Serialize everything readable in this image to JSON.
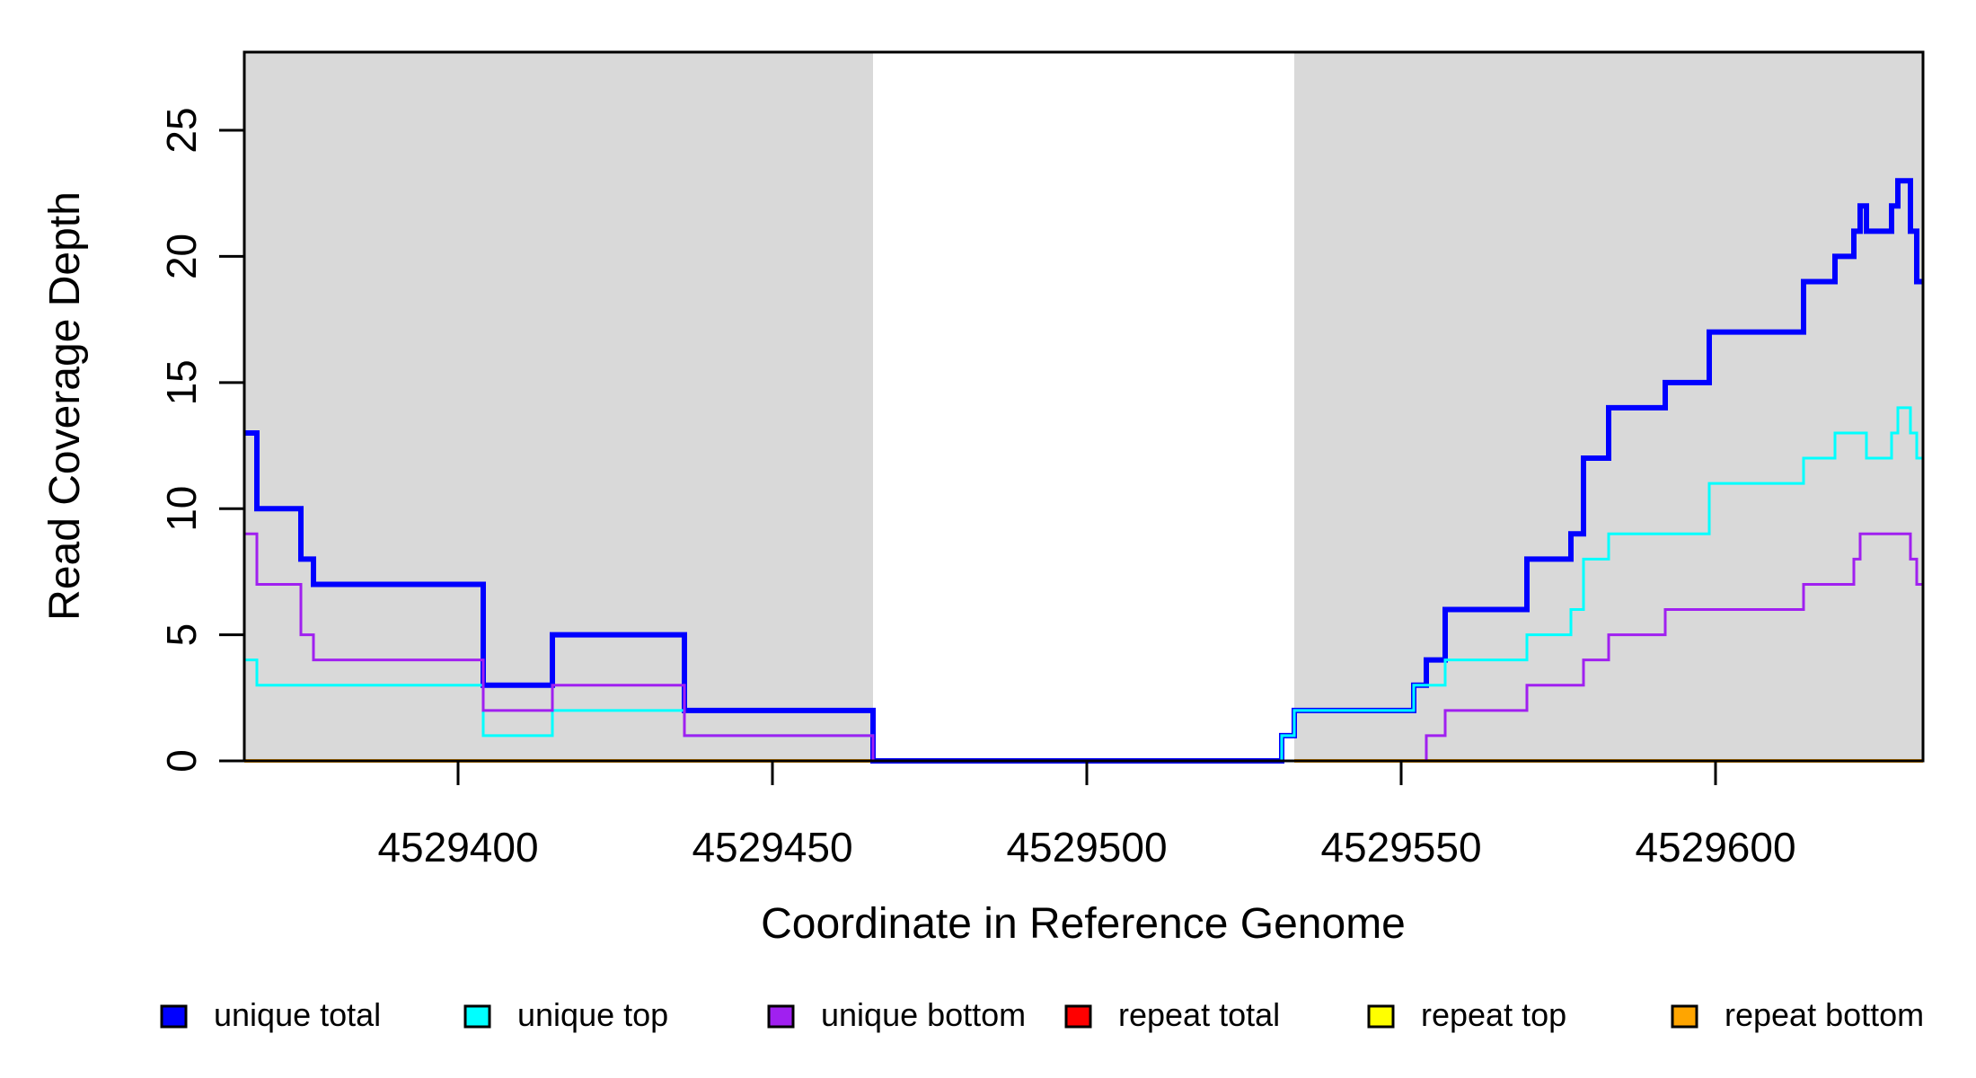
{
  "chart_data": {
    "type": "line",
    "subtype": "step-coverage-plot",
    "title": "",
    "xlabel": "Coordinate in Reference Genome",
    "ylabel": "Read Coverage Depth",
    "xlim": [
      4529366,
      4529633
    ],
    "ylim": [
      0,
      28.1
    ],
    "grid": false,
    "legend_position": "bottom",
    "xticks": [
      {
        "v": 4529400,
        "label": "4529400"
      },
      {
        "v": 4529450,
        "label": "4529450"
      },
      {
        "v": 4529500,
        "label": "4529500"
      },
      {
        "v": 4529550,
        "label": "4529550"
      },
      {
        "v": 4529600,
        "label": "4529600"
      }
    ],
    "yticks": [
      {
        "v": 0,
        "label": "0"
      },
      {
        "v": 5,
        "label": "5"
      },
      {
        "v": 10,
        "label": "10"
      },
      {
        "v": 15,
        "label": "15"
      },
      {
        "v": 20,
        "label": "20"
      },
      {
        "v": 25,
        "label": "25"
      }
    ],
    "shaded_regions": {
      "color": "#D9D9D9",
      "meaning": "repeat regions",
      "ranges": [
        [
          4529366,
          4529466
        ],
        [
          4529533,
          4529633
        ]
      ]
    },
    "draw_order": [
      3,
      4,
      5,
      0,
      1,
      2
    ],
    "series": [
      {
        "name": "unique total",
        "color": "#0000FF",
        "line_width": 6,
        "segments": [
          {
            "xend": 4529633,
            "points": [
              [
                4529366,
                13
              ],
              [
                4529368,
                10
              ],
              [
                4529375,
                8
              ],
              [
                4529377,
                7
              ],
              [
                4529404,
                3
              ],
              [
                4529415,
                5
              ],
              [
                4529436,
                2
              ],
              [
                4529466,
                0
              ],
              [
                4529531,
                1
              ],
              [
                4529533,
                2
              ],
              [
                4529552,
                3
              ],
              [
                4529554,
                4
              ],
              [
                4529557,
                6
              ],
              [
                4529570,
                8
              ],
              [
                4529577,
                9
              ],
              [
                4529579,
                12
              ],
              [
                4529583,
                14
              ],
              [
                4529592,
                15
              ],
              [
                4529599,
                17
              ],
              [
                4529614,
                19
              ],
              [
                4529619,
                20
              ],
              [
                4529622,
                21
              ],
              [
                4529623,
                22
              ],
              [
                4529624,
                21
              ],
              [
                4529628,
                22
              ],
              [
                4529629,
                23
              ],
              [
                4529631,
                21
              ],
              [
                4529632,
                19
              ]
            ]
          }
        ]
      },
      {
        "name": "unique top",
        "color": "#00FFFF",
        "line_width": 3,
        "segments": [
          {
            "xend": 4529633,
            "points": [
              [
                4529366,
                4
              ],
              [
                4529368,
                3
              ],
              [
                4529404,
                1
              ],
              [
                4529415,
                2
              ],
              [
                4529436,
                1
              ],
              [
                4529466,
                0
              ],
              [
                4529531,
                1
              ],
              [
                4529533,
                2
              ],
              [
                4529552,
                3
              ],
              [
                4529557,
                4
              ],
              [
                4529570,
                5
              ],
              [
                4529577,
                6
              ],
              [
                4529579,
                8
              ],
              [
                4529583,
                9
              ],
              [
                4529599,
                11
              ],
              [
                4529614,
                12
              ],
              [
                4529619,
                13
              ],
              [
                4529624,
                12
              ],
              [
                4529628,
                13
              ],
              [
                4529629,
                14
              ],
              [
                4529631,
                13
              ],
              [
                4529632,
                12
              ]
            ]
          }
        ]
      },
      {
        "name": "unique bottom",
        "color": "#A020F0",
        "line_width": 3,
        "segments": [
          {
            "xend": 4529633,
            "points": [
              [
                4529366,
                9
              ],
              [
                4529368,
                7
              ],
              [
                4529375,
                5
              ],
              [
                4529377,
                4
              ],
              [
                4529404,
                2
              ],
              [
                4529415,
                3
              ],
              [
                4529436,
                1
              ],
              [
                4529466,
                0
              ],
              [
                4529554,
                1
              ],
              [
                4529557,
                2
              ],
              [
                4529570,
                3
              ],
              [
                4529579,
                4
              ],
              [
                4529583,
                5
              ],
              [
                4529592,
                6
              ],
              [
                4529614,
                7
              ],
              [
                4529622,
                8
              ],
              [
                4529623,
                9
              ],
              [
                4529631,
                8
              ],
              [
                4529632,
                7
              ]
            ]
          }
        ]
      },
      {
        "name": "repeat total",
        "color": "#FF0000",
        "line_width": 3,
        "segments": [
          {
            "xend": 4529466,
            "points": [
              [
                4529366,
                0
              ]
            ]
          },
          {
            "xend": 4529633,
            "points": [
              [
                4529533,
                0
              ]
            ]
          }
        ]
      },
      {
        "name": "repeat top",
        "color": "#FFFF00",
        "line_width": 3,
        "segments": [
          {
            "xend": 4529466,
            "points": [
              [
                4529366,
                0
              ]
            ]
          },
          {
            "xend": 4529633,
            "points": [
              [
                4529533,
                0
              ]
            ]
          }
        ]
      },
      {
        "name": "repeat bottom",
        "color": "#FFA500",
        "line_width": 4,
        "segments": [
          {
            "xend": 4529466,
            "points": [
              [
                4529366,
                0
              ]
            ]
          },
          {
            "xend": 4529633,
            "points": [
              [
                4529533,
                0
              ]
            ]
          }
        ]
      }
    ]
  }
}
